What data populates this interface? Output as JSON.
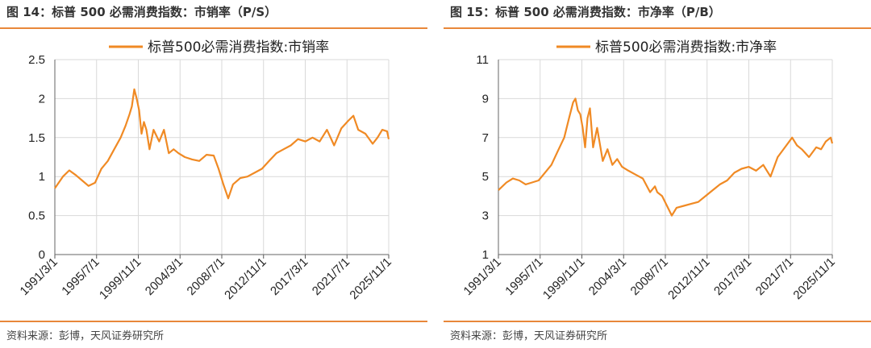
{
  "chart_data": [
    {
      "type": "line",
      "title": "图 14：标普 500 必需消费指数：市销率（P/S）",
      "source": "资料来源：彭博，天风证券研究所",
      "legend": "标普500必需消费指数:市销率",
      "legend_position": "top-center",
      "color": "#f08a24",
      "grid": true,
      "ylim": [
        0,
        2.5
      ],
      "yticks": [
        "0",
        "0.5",
        "1",
        "1.5",
        "2",
        "2.5"
      ],
      "xlim": [
        "1991/3/1",
        "2025/11/1"
      ],
      "xticks": [
        "1991/3/1",
        "1995/7/1",
        "1999/11/1",
        "2004/3/1",
        "2008/7/1",
        "2012/11/1",
        "2017/3/1",
        "2021/7/1",
        "2025/11/1"
      ],
      "x": [
        "1991/3",
        "1992/1",
        "1992/9",
        "1993/5",
        "1994/1",
        "1994/9",
        "1995/5",
        "1996/1",
        "1996/9",
        "1997/5",
        "1998/1",
        "1998/7",
        "1998/12",
        "1999/3",
        "1999/6",
        "1999/9",
        "1999/12",
        "2000/3",
        "2000/6",
        "2000/9",
        "2001/1",
        "2001/6",
        "2002/1",
        "2002/7",
        "2003/1",
        "2003/7",
        "2004/1",
        "2004/9",
        "2005/6",
        "2006/3",
        "2006/12",
        "2007/9",
        "2008/3",
        "2008/9",
        "2009/3",
        "2009/9",
        "2010/6",
        "2011/3",
        "2011/12",
        "2012/9",
        "2013/6",
        "2014/3",
        "2014/12",
        "2015/9",
        "2016/6",
        "2017/3",
        "2017/12",
        "2018/9",
        "2019/6",
        "2020/3",
        "2020/12",
        "2021/9",
        "2022/3",
        "2022/9",
        "2023/6",
        "2024/3",
        "2024/9",
        "2025/3",
        "2025/9",
        "2025/11"
      ],
      "values": [
        0.85,
        1.0,
        1.08,
        1.02,
        0.95,
        0.88,
        0.92,
        1.1,
        1.2,
        1.35,
        1.5,
        1.65,
        1.8,
        1.9,
        2.12,
        2.0,
        1.85,
        1.55,
        1.7,
        1.6,
        1.35,
        1.6,
        1.45,
        1.6,
        1.3,
        1.35,
        1.3,
        1.25,
        1.22,
        1.2,
        1.28,
        1.27,
        1.1,
        0.9,
        0.72,
        0.9,
        0.98,
        1.0,
        1.05,
        1.1,
        1.2,
        1.3,
        1.35,
        1.4,
        1.48,
        1.45,
        1.5,
        1.45,
        1.6,
        1.4,
        1.62,
        1.72,
        1.78,
        1.6,
        1.55,
        1.42,
        1.5,
        1.6,
        1.58,
        1.48
      ]
    },
    {
      "type": "line",
      "title": "图 15：标普 500 必需消费指数：市净率（P/B）",
      "source": "资料来源：彭博，天风证券研究所",
      "legend": "标普500必需消费指数:市净率",
      "legend_position": "top-center",
      "color": "#f08a24",
      "grid": true,
      "ylim": [
        1,
        11
      ],
      "yticks": [
        "1",
        "3",
        "5",
        "7",
        "9",
        "11"
      ],
      "xlim": [
        "1991/3/1",
        "2025/11/1"
      ],
      "xticks": [
        "1991/3/1",
        "1995/7/1",
        "1999/11/1",
        "2004/3/1",
        "2008/7/1",
        "2012/11/1",
        "2017/3/1",
        "2021/7/1",
        "2025/11/1"
      ],
      "x": [
        "1991/3",
        "1992/1",
        "1992/9",
        "1993/5",
        "1994/1",
        "1994/9",
        "1995/5",
        "1996/1",
        "1996/9",
        "1997/5",
        "1998/1",
        "1998/7",
        "1998/12",
        "1999/3",
        "1999/6",
        "1999/9",
        "1999/12",
        "2000/3",
        "2000/6",
        "2000/9",
        "2001/1",
        "2001/6",
        "2002/1",
        "2002/7",
        "2003/1",
        "2003/7",
        "2004/1",
        "2004/9",
        "2005/6",
        "2006/3",
        "2006/12",
        "2007/6",
        "2007/9",
        "2008/3",
        "2008/9",
        "2009/3",
        "2009/9",
        "2010/6",
        "2011/3",
        "2011/12",
        "2012/9",
        "2013/6",
        "2014/3",
        "2014/12",
        "2015/9",
        "2016/6",
        "2017/3",
        "2017/12",
        "2018/9",
        "2019/6",
        "2020/3",
        "2020/12",
        "2021/9",
        "2022/3",
        "2022/9",
        "2023/6",
        "2024/3",
        "2024/9",
        "2025/3",
        "2025/9",
        "2025/11"
      ],
      "values": [
        4.3,
        4.7,
        4.9,
        4.8,
        4.6,
        4.7,
        4.8,
        5.2,
        5.6,
        6.3,
        7.0,
        8.0,
        8.8,
        9.0,
        8.4,
        8.2,
        7.5,
        6.5,
        8.0,
        8.5,
        6.5,
        7.5,
        5.8,
        6.4,
        5.6,
        5.9,
        5.5,
        5.3,
        5.1,
        4.9,
        4.2,
        4.5,
        4.2,
        4.0,
        3.5,
        3.0,
        3.4,
        3.5,
        3.6,
        3.7,
        4.0,
        4.3,
        4.6,
        4.8,
        5.2,
        5.4,
        5.5,
        5.3,
        5.6,
        5.0,
        6.0,
        6.5,
        7.0,
        6.6,
        6.4,
        6.0,
        6.5,
        6.4,
        6.8,
        7.0,
        6.7
      ]
    }
  ]
}
